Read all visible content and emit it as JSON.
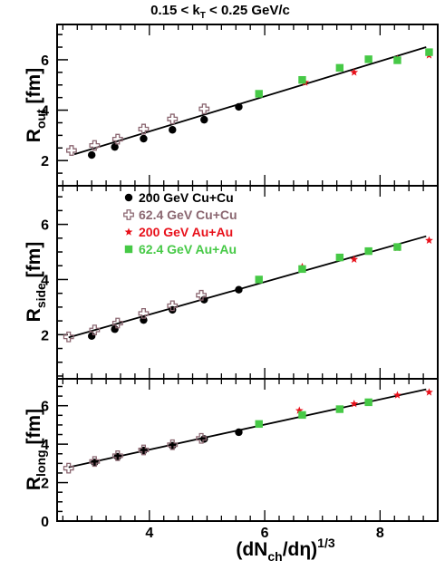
{
  "title": "0.15 < k",
  "title_sub": "T",
  "title_rest": " < 0.25 GeV/c",
  "xlabel": {
    "pre": "(dN",
    "sub1": "ch",
    "mid": "/dη)",
    "sup": "1/3"
  },
  "x_ticks": [
    "4",
    "6",
    "8"
  ],
  "legend": {
    "placement": "top-left of middle panel",
    "entries": [
      {
        "label": "200 GeV Cu+Cu",
        "marker": "filled-circle",
        "color": "#000000"
      },
      {
        "label": "62.4 GeV Cu+Cu",
        "marker": "open-cross",
        "color": "#8a6670"
      },
      {
        "label": "200 GeV Au+Au",
        "marker": "star",
        "color": "#e8101a"
      },
      {
        "label": "62.4 GeV Au+Au",
        "marker": "square",
        "color": "#46c946"
      }
    ]
  },
  "colors": {
    "cu200": "#000000",
    "cu62": "#8a6670",
    "au200": "#e8101a",
    "au62": "#46c946",
    "fit": "#000000"
  },
  "chart_data": [
    {
      "type": "scatter",
      "panel": "top",
      "ylabel": {
        "main": "R",
        "sub": "out",
        "unit": " [fm]"
      },
      "y_ticks": [
        "2",
        "4",
        "6"
      ],
      "xlim": [
        2.4,
        9.0
      ],
      "ylim": [
        1.0,
        7.4
      ],
      "fit": {
        "x": [
          2.7,
          8.8
        ],
        "y": [
          2.25,
          6.5
        ]
      },
      "series": [
        {
          "key": "cu200",
          "x": [
            3.0,
            3.4,
            3.9,
            4.4,
            4.95,
            5.55
          ],
          "y": [
            2.22,
            2.54,
            2.87,
            3.22,
            3.62,
            4.13
          ]
        },
        {
          "key": "cu62",
          "x": [
            2.65,
            3.05,
            3.45,
            3.9,
            4.4,
            4.95
          ],
          "y": [
            2.4,
            2.6,
            2.85,
            3.25,
            3.65,
            4.05
          ]
        },
        {
          "key": "au200",
          "x": [
            6.7,
            7.55,
            8.3,
            8.85
          ],
          "y": [
            5.1,
            5.5,
            6.02,
            6.18
          ]
        },
        {
          "key": "au62",
          "x": [
            5.9,
            6.65,
            7.3,
            7.8,
            8.3,
            8.85
          ],
          "y": [
            4.65,
            5.2,
            5.68,
            6.02,
            5.98,
            6.3
          ]
        }
      ]
    },
    {
      "type": "scatter",
      "panel": "middle",
      "ylabel": {
        "main": "R",
        "sub": "side",
        "unit": " [fm]"
      },
      "y_ticks": [
        "2",
        "4",
        "6"
      ],
      "xlim": [
        2.4,
        9.0
      ],
      "ylim": [
        0.4,
        7.4
      ],
      "fit": {
        "x": [
          2.6,
          8.8
        ],
        "y": [
          1.9,
          5.57
        ]
      },
      "series": [
        {
          "key": "cu200",
          "x": [
            3.0,
            3.4,
            3.9,
            4.4,
            4.95,
            5.55
          ],
          "y": [
            1.95,
            2.2,
            2.53,
            2.9,
            3.27,
            3.63
          ]
        },
        {
          "key": "cu62",
          "x": [
            2.6,
            3.05,
            3.45,
            3.9,
            4.4,
            4.9
          ],
          "y": [
            1.92,
            2.17,
            2.42,
            2.77,
            3.05,
            3.43
          ]
        },
        {
          "key": "au200",
          "x": [
            6.65,
            7.55,
            8.3,
            8.85
          ],
          "y": [
            4.46,
            4.73,
            5.15,
            5.42
          ]
        },
        {
          "key": "au62",
          "x": [
            5.9,
            6.65,
            7.3,
            7.8,
            8.3
          ],
          "y": [
            4.0,
            4.38,
            4.8,
            5.03,
            5.18
          ]
        }
      ]
    },
    {
      "type": "scatter",
      "panel": "bottom",
      "ylabel": {
        "main": "R",
        "sub": "long",
        "unit": " [fm]"
      },
      "y_ticks": [
        "0",
        "2",
        "4",
        "6"
      ],
      "xlim": [
        2.4,
        9.0
      ],
      "ylim": [
        0.0,
        7.4
      ],
      "fit": {
        "x": [
          2.6,
          8.8
        ],
        "y": [
          2.8,
          6.85
        ]
      },
      "series": [
        {
          "key": "cu200",
          "x": [
            3.05,
            3.45,
            3.9,
            4.4,
            4.95,
            5.55
          ],
          "y": [
            3.05,
            3.35,
            3.67,
            3.92,
            4.27,
            4.62
          ]
        },
        {
          "key": "cu62",
          "x": [
            2.6,
            3.05,
            3.45,
            3.9,
            4.4,
            4.9
          ],
          "y": [
            2.75,
            3.1,
            3.4,
            3.7,
            3.97,
            4.3
          ]
        },
        {
          "key": "au200",
          "x": [
            6.6,
            7.55,
            8.3,
            8.85
          ],
          "y": [
            5.75,
            6.1,
            6.55,
            6.7
          ]
        },
        {
          "key": "au62",
          "x": [
            5.9,
            6.65,
            7.3,
            7.8
          ],
          "y": [
            5.05,
            5.52,
            5.82,
            6.18
          ]
        }
      ]
    }
  ]
}
